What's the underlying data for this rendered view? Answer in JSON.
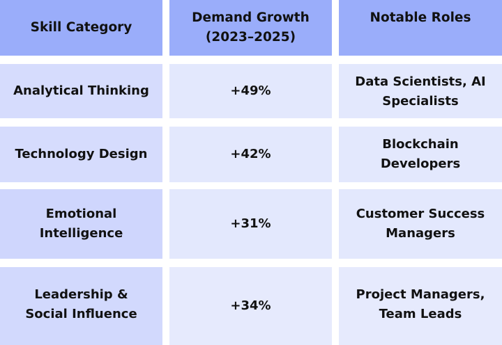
{
  "header": {
    "col_skill": "Skill Category",
    "col_growth": "Demand Growth\n(2023–2025)",
    "col_roles": "Notable Roles"
  },
  "rows": [
    {
      "skill": "Analytical Thinking",
      "growth": "+49%",
      "roles": "Data Scientists, AI\nSpecialists"
    },
    {
      "skill": "Technology Design",
      "growth": "+42%",
      "roles": "Blockchain\nDevelopers"
    },
    {
      "skill": "Emotional\nIntelligence",
      "growth": "+31%",
      "roles": "Customer Success\nManagers"
    },
    {
      "skill": "Leadership &\nSocial Influence",
      "growth": "+34%",
      "roles": "Project Managers,\nTeam Leads"
    }
  ],
  "colors": {
    "header_bg": "#9aadfa",
    "skill_cell_bg": "#d6dcfd",
    "body_cell_bg": "#e3e8fd"
  }
}
